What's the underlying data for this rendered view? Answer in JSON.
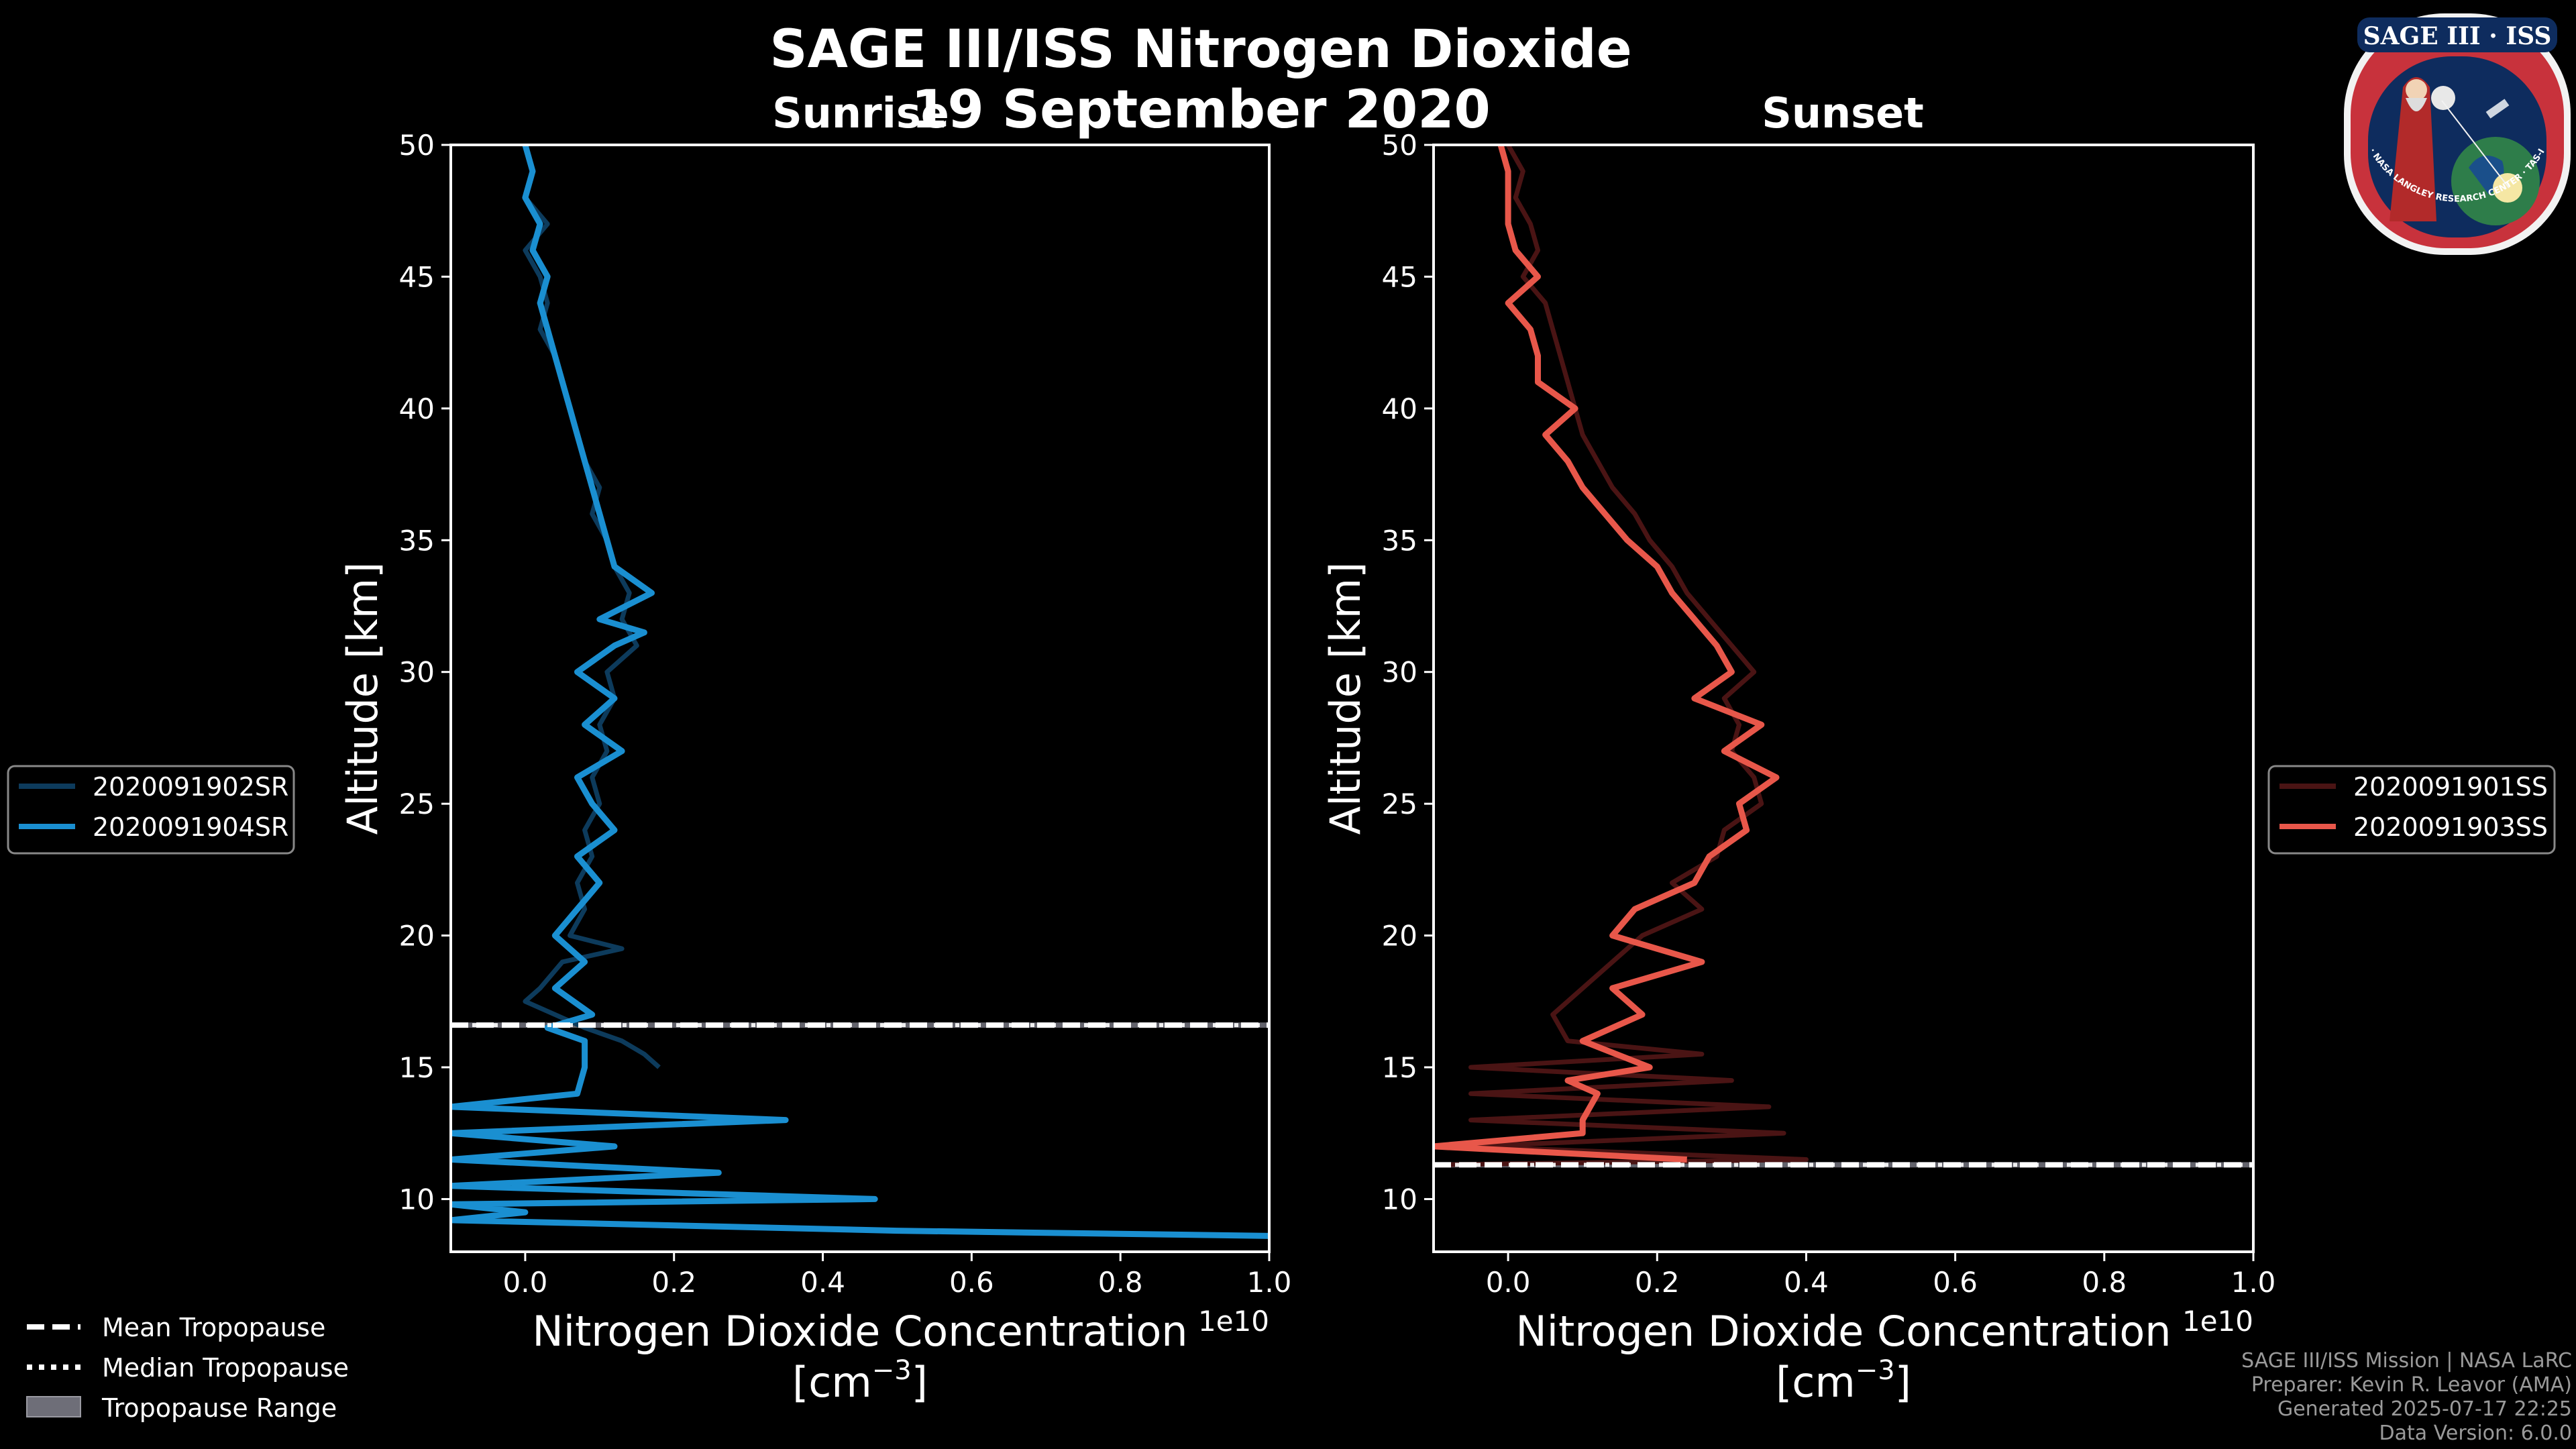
{
  "figure": {
    "title": "SAGE III/ISS Nitrogen Dioxide",
    "date": "19 September 2020",
    "sunrise_label": "Sunrise",
    "sunset_label": "Sunset",
    "logo_text": "SAGE III · ISS",
    "logo_ring_text": "BALL · NASA LANGLEY RESEARCH CENTER · TAS-I · ESA"
  },
  "credits": {
    "line1": "SAGE III/ISS Mission | NASA LaRC",
    "line2": "Preparer: Kevin R. Leavor (AMA)",
    "line3": "Generated 2025-07-17 22:25",
    "line4": "Data Version: 6.0.0"
  },
  "tropopause_legend": {
    "mean": "Mean Tropopause",
    "median": "Median Tropopause",
    "range": "Tropopause Range"
  },
  "colors": {
    "sr_dark": "#0d3b5c",
    "sr_bright": "#1a8fd1",
    "ss_dark": "#4a1414",
    "ss_bright": "#e8574a"
  },
  "chart_data": [
    {
      "type": "line",
      "name": "Sunrise",
      "xlabel": "Nitrogen Dioxide Concentration",
      "xlabel_unit_prefix": "[cm",
      "xlabel_unit_exp": "−3",
      "xlabel_unit_suffix": "]",
      "ylabel": "Altitude [km]",
      "x_offset_label": "1e10",
      "xlim": [
        -0.1,
        1.0
      ],
      "ylim": [
        8,
        50
      ],
      "x_ticks": [
        "0.0",
        "0.2",
        "0.4",
        "0.6",
        "0.8",
        "1.0"
      ],
      "y_ticks": [
        "10",
        "15",
        "20",
        "25",
        "30",
        "35",
        "40",
        "45",
        "50"
      ],
      "tropopause_mean": 16.6,
      "tropopause_median": 16.6,
      "tropopause_range": [
        16.5,
        16.7
      ],
      "series": [
        {
          "name": "2020091902SR",
          "alt": [
            50,
            49,
            48,
            47,
            46,
            45,
            44,
            43,
            42,
            41,
            40,
            39,
            38,
            37,
            36,
            35,
            34,
            33,
            32,
            31,
            30,
            29,
            28,
            27,
            26,
            25,
            24,
            23,
            22,
            21,
            20,
            19.5,
            19,
            18,
            17.5,
            17,
            16.5,
            16,
            15.5,
            15
          ],
          "values": [
            0.0,
            0.01,
            0.0,
            0.03,
            0.0,
            0.02,
            0.03,
            0.02,
            0.04,
            0.05,
            0.06,
            0.07,
            0.08,
            0.1,
            0.09,
            0.11,
            0.12,
            0.14,
            0.13,
            0.15,
            0.11,
            0.12,
            0.1,
            0.11,
            0.09,
            0.1,
            0.08,
            0.09,
            0.07,
            0.08,
            0.06,
            0.13,
            0.05,
            0.02,
            0.0,
            0.04,
            0.08,
            0.13,
            0.16,
            0.18
          ]
        },
        {
          "name": "2020091904SR",
          "alt": [
            50,
            49,
            48,
            47,
            46,
            45,
            44,
            43,
            42,
            41,
            40,
            39,
            38,
            37,
            36,
            35,
            34,
            33,
            32,
            31.5,
            31,
            30,
            29,
            28,
            27,
            26,
            25,
            24,
            23,
            22,
            21,
            20,
            19,
            18,
            17,
            16.5,
            16,
            15,
            14,
            13.5,
            13,
            12.5,
            12,
            11.5,
            11,
            10.5,
            10,
            9.8,
            9.5,
            9.2,
            8.8,
            8.6
          ],
          "values": [
            0.0,
            0.01,
            0.0,
            0.02,
            0.01,
            0.03,
            0.02,
            0.03,
            0.04,
            0.05,
            0.06,
            0.07,
            0.08,
            0.09,
            0.1,
            0.11,
            0.12,
            0.17,
            0.1,
            0.16,
            0.12,
            0.07,
            0.12,
            0.08,
            0.13,
            0.07,
            0.09,
            0.12,
            0.07,
            0.1,
            0.07,
            0.04,
            0.08,
            0.04,
            0.09,
            0.03,
            0.08,
            0.08,
            0.07,
            -0.1,
            0.35,
            -0.1,
            0.12,
            -0.1,
            0.26,
            -0.1,
            0.47,
            -0.1,
            0.0,
            -0.1,
            0.5,
            1.0
          ]
        }
      ],
      "legend": [
        "2020091902SR",
        "2020091904SR"
      ]
    },
    {
      "type": "line",
      "name": "Sunset",
      "xlabel": "Nitrogen Dioxide Concentration",
      "xlabel_unit_prefix": "[cm",
      "xlabel_unit_exp": "−3",
      "xlabel_unit_suffix": "]",
      "ylabel": "Altitude [km]",
      "x_offset_label": "1e10",
      "xlim": [
        -0.1,
        1.0
      ],
      "ylim": [
        8,
        50
      ],
      "x_ticks": [
        "0.0",
        "0.2",
        "0.4",
        "0.6",
        "0.8",
        "1.0"
      ],
      "y_ticks": [
        "10",
        "15",
        "20",
        "25",
        "30",
        "35",
        "40",
        "45",
        "50"
      ],
      "tropopause_mean": 11.3,
      "tropopause_median": 11.3,
      "tropopause_range": [
        11.2,
        11.4
      ],
      "series": [
        {
          "name": "2020091901SS",
          "alt": [
            50,
            49,
            48,
            47,
            46,
            45,
            44,
            43,
            42,
            41,
            40,
            39,
            38,
            37,
            36,
            35,
            34,
            33,
            32,
            31,
            30,
            29,
            28,
            27,
            26,
            25,
            24,
            23,
            22,
            21,
            20,
            19,
            18,
            17,
            16,
            15.5,
            15,
            14.5,
            14,
            13.5,
            13,
            12.5,
            12,
            11.5,
            11.3
          ],
          "values": [
            0.0,
            0.02,
            0.01,
            0.03,
            0.04,
            0.02,
            0.05,
            0.06,
            0.07,
            0.08,
            0.09,
            0.1,
            0.12,
            0.14,
            0.17,
            0.19,
            0.22,
            0.24,
            0.27,
            0.3,
            0.33,
            0.29,
            0.31,
            0.3,
            0.33,
            0.34,
            0.29,
            0.28,
            0.22,
            0.26,
            0.18,
            0.14,
            0.1,
            0.06,
            0.08,
            0.26,
            -0.05,
            0.3,
            -0.05,
            0.35,
            -0.05,
            0.37,
            -0.05,
            0.4,
            -0.1
          ]
        },
        {
          "name": "2020091903SS",
          "alt": [
            50,
            49,
            48,
            47,
            46,
            45,
            44,
            43,
            42,
            41,
            40,
            39,
            38,
            37,
            36,
            35,
            34,
            33,
            32,
            31,
            30,
            29,
            28,
            27,
            26,
            25,
            24,
            23,
            22,
            21,
            20,
            19,
            18,
            17,
            16,
            15,
            14.5,
            14,
            13,
            12.5,
            12,
            11.5
          ],
          "values": [
            -0.01,
            0.0,
            0.0,
            0.0,
            0.01,
            0.04,
            0.0,
            0.03,
            0.04,
            0.04,
            0.09,
            0.05,
            0.08,
            0.1,
            0.13,
            0.16,
            0.2,
            0.22,
            0.25,
            0.28,
            0.3,
            0.25,
            0.34,
            0.29,
            0.36,
            0.31,
            0.32,
            0.27,
            0.25,
            0.17,
            0.14,
            0.26,
            0.14,
            0.18,
            0.1,
            0.19,
            0.08,
            0.12,
            0.1,
            0.1,
            -0.1,
            0.24
          ]
        }
      ],
      "legend": [
        "2020091901SS",
        "2020091903SS"
      ]
    }
  ]
}
